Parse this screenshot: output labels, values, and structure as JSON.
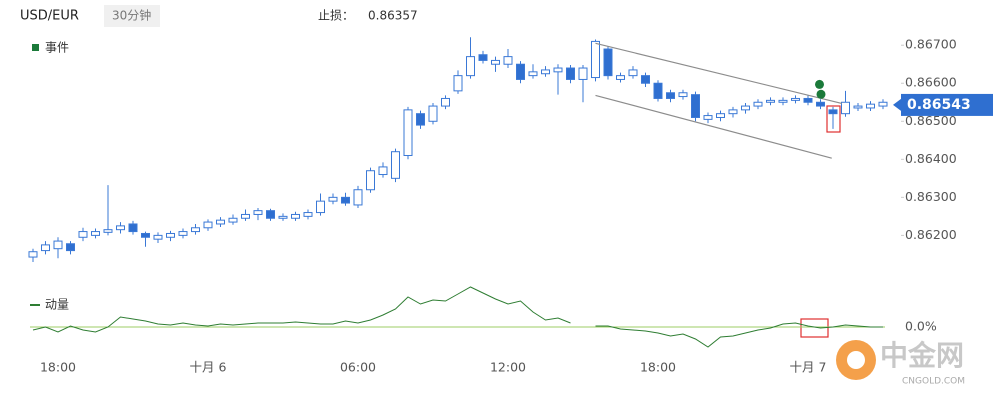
{
  "header": {
    "symbol": "USD/EUR",
    "interval": "30分钟",
    "stop_label": "止损：",
    "stop_value": "0.86357"
  },
  "watermark": {
    "brand": "中金网",
    "site": "CNGOLD.COM"
  },
  "chart_data": {
    "type": "candlestick",
    "categories": [
      null,
      null,
      "18:00",
      null,
      null,
      null,
      null,
      null,
      null,
      null,
      null,
      null,
      null,
      null,
      "十月 6",
      null,
      null,
      null,
      null,
      null,
      null,
      null,
      null,
      null,
      null,
      null,
      "06:00",
      null,
      null,
      null,
      null,
      null,
      null,
      null,
      null,
      null,
      null,
      null,
      "12:00",
      null,
      null,
      null,
      null,
      null,
      null,
      null,
      null,
      null,
      null,
      null,
      "18:00",
      null,
      null,
      null,
      null,
      null,
      null,
      null,
      null,
      null,
      null,
      null,
      "十月 7",
      null,
      null,
      null,
      null,
      null,
      null
    ],
    "open": [
      0.86143,
      0.8616,
      0.86165,
      0.86178,
      0.86195,
      0.862,
      0.86208,
      0.86215,
      0.8623,
      0.86205,
      0.8619,
      0.86195,
      0.862,
      0.8621,
      0.8622,
      0.8623,
      0.86235,
      0.86245,
      0.86255,
      0.86265,
      0.86245,
      0.86245,
      0.8625,
      0.8626,
      0.8629,
      0.863,
      0.8628,
      0.8632,
      0.8636,
      0.8635,
      0.8641,
      0.8652,
      0.865,
      0.8654,
      0.8658,
      0.8662,
      0.86675,
      0.8665,
      0.8665,
      0.8665,
      0.8662,
      0.86625,
      0.8663,
      0.8664,
      0.8661,
      0.86615,
      0.8669,
      0.8661,
      0.8662,
      0.8662,
      0.866,
      0.86575,
      0.86565,
      0.8657,
      0.86505,
      0.8651,
      0.8652,
      0.8653,
      0.8654,
      0.8655,
      0.8655,
      0.86555,
      0.8656,
      0.8655,
      0.8653,
      0.8652,
      0.86535,
      0.86535,
      0.8654
    ],
    "high": [
      0.86165,
      0.86185,
      0.86195,
      0.86185,
      0.8622,
      0.86218,
      0.86332,
      0.86235,
      0.86238,
      0.8621,
      0.86208,
      0.86212,
      0.86218,
      0.8623,
      0.86242,
      0.86248,
      0.86255,
      0.86268,
      0.86272,
      0.8627,
      0.86258,
      0.86262,
      0.86268,
      0.8631,
      0.8631,
      0.86312,
      0.8633,
      0.86378,
      0.86392,
      0.86428,
      0.86538,
      0.86528,
      0.86548,
      0.86568,
      0.86634,
      0.86721,
      0.86685,
      0.8667,
      0.8669,
      0.86658,
      0.8665,
      0.86645,
      0.8665,
      0.86648,
      0.86648,
      0.86715,
      0.86698,
      0.86628,
      0.86645,
      0.86628,
      0.86608,
      0.86583,
      0.86583,
      0.86578,
      0.86523,
      0.86528,
      0.86538,
      0.86548,
      0.86558,
      0.86563,
      0.86563,
      0.86568,
      0.86568,
      0.86558,
      0.86538,
      0.8658,
      0.86548,
      0.86553,
      0.86558
    ],
    "low": [
      0.8613,
      0.8615,
      0.8614,
      0.8615,
      0.86185,
      0.86192,
      0.862,
      0.86205,
      0.86202,
      0.8617,
      0.8618,
      0.86185,
      0.86192,
      0.86202,
      0.86212,
      0.86222,
      0.86228,
      0.86238,
      0.8624,
      0.86238,
      0.86238,
      0.86238,
      0.86242,
      0.86252,
      0.86282,
      0.86278,
      0.86272,
      0.86312,
      0.86352,
      0.8634,
      0.864,
      0.8648,
      0.86492,
      0.86532,
      0.86572,
      0.86612,
      0.86652,
      0.8663,
      0.8664,
      0.866,
      0.86612,
      0.86617,
      0.8657,
      0.866,
      0.8655,
      0.86605,
      0.8661,
      0.86602,
      0.86612,
      0.8659,
      0.86552,
      0.8655,
      0.86557,
      0.865,
      0.86495,
      0.865,
      0.8651,
      0.8652,
      0.86532,
      0.86542,
      0.86542,
      0.86547,
      0.86542,
      0.86532,
      0.8648,
      0.86512,
      0.86527,
      0.86527,
      0.86532
    ],
    "close": [
      0.86157,
      0.86175,
      0.86185,
      0.8616,
      0.8621,
      0.8621,
      0.86215,
      0.86225,
      0.8621,
      0.86195,
      0.862,
      0.86205,
      0.8621,
      0.8622,
      0.86235,
      0.8624,
      0.86245,
      0.86255,
      0.86265,
      0.86245,
      0.8625,
      0.86255,
      0.8626,
      0.8629,
      0.863,
      0.86285,
      0.8632,
      0.8637,
      0.8638,
      0.8642,
      0.8653,
      0.8649,
      0.8654,
      0.8656,
      0.8662,
      0.8667,
      0.8666,
      0.8666,
      0.8667,
      0.8661,
      0.8663,
      0.86635,
      0.8664,
      0.8661,
      0.8664,
      0.8671,
      0.8662,
      0.8662,
      0.86635,
      0.866,
      0.8656,
      0.8656,
      0.86575,
      0.8651,
      0.86515,
      0.8652,
      0.8653,
      0.8654,
      0.8655,
      0.86555,
      0.86555,
      0.8656,
      0.8655,
      0.8654,
      0.8652,
      0.8655,
      0.8654,
      0.86545,
      0.8655
    ],
    "up_color": "#ffffff",
    "down_color": "#2f6fd0",
    "line_color": "#3a78d6",
    "ylim": [
      0.8613,
      0.8674
    ],
    "yticks": [
      {
        "value": 0.867,
        "label": "0.86700"
      },
      {
        "value": 0.866,
        "label": "0.86600"
      },
      {
        "value": 0.865,
        "label": "0.86500"
      },
      {
        "value": 0.864,
        "label": "0.86400"
      },
      {
        "value": 0.863,
        "label": "0.86300"
      },
      {
        "value": 0.862,
        "label": "0.86200"
      }
    ],
    "last_price": 0.86543,
    "last_price_color": "#2f6fd0",
    "events": {
      "name": "事件",
      "color": "#1b7a3a",
      "values": [
        null,
        null,
        null,
        null,
        null,
        null,
        null,
        null,
        null,
        null,
        null,
        null,
        null,
        null,
        null,
        null,
        null,
        null,
        null,
        null,
        null,
        null,
        null,
        null,
        null,
        null,
        null,
        null,
        null,
        null,
        null,
        null,
        null,
        null,
        null,
        null,
        null,
        null,
        null,
        null,
        null,
        null,
        null,
        null,
        null,
        null,
        null,
        null,
        null,
        null,
        null,
        null,
        null,
        null,
        null,
        null,
        null,
        null,
        null,
        null,
        null,
        null,
        null,
        0.86597,
        0.86571,
        null,
        null,
        null,
        null
      ]
    },
    "channel": {
      "color": "#8c8c8c",
      "lines": [
        {
          "x": [
            45,
            64.7
          ],
          "y": [
            0.86705,
            0.86547
          ]
        },
        {
          "x": [
            45,
            63.9
          ],
          "y": [
            0.86568,
            0.86403
          ]
        }
      ]
    },
    "momentum": {
      "name": "动量",
      "color": "#2e7d32",
      "zero_color": "#9ccc65",
      "values": [
        -0.03,
        0,
        -0.05,
        0.01,
        -0.03,
        -0.05,
        0,
        0.1,
        0.08,
        0.06,
        0.03,
        0.02,
        0.04,
        0.02,
        0.01,
        0.03,
        0.02,
        0.03,
        0.04,
        0.04,
        0.04,
        0.05,
        0.04,
        0.03,
        0.03,
        0.06,
        0.04,
        0.07,
        0.12,
        0.18,
        0.3,
        0.23,
        0.27,
        0.26,
        0.33,
        0.4,
        0.34,
        0.28,
        0.23,
        0.26,
        0.15,
        0.07,
        0.09,
        0.04,
        null,
        0.01,
        0.01,
        -0.02,
        -0.03,
        -0.04,
        -0.06,
        -0.09,
        -0.07,
        -0.12,
        -0.2,
        -0.1,
        -0.09,
        -0.06,
        -0.03,
        -0.01,
        0.03,
        0.04,
        0.01,
        -0.01,
        0,
        0.02,
        0.01,
        0,
        0
      ],
      "ylim": [
        -0.25,
        0.4
      ],
      "yticks": [
        {
          "value": 0,
          "label": "0.0%"
        }
      ]
    }
  }
}
